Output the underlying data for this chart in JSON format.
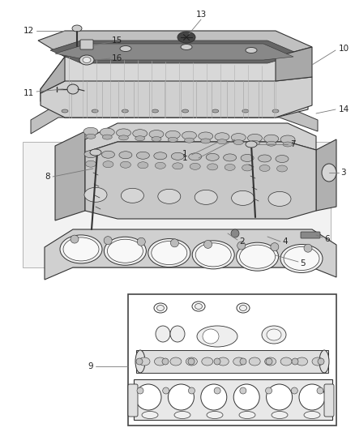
{
  "bg_color": "#ffffff",
  "fig_width": 4.38,
  "fig_height": 5.33,
  "dpi": 100,
  "draw_color": "#333333",
  "light_gray": "#e8e8e8",
  "mid_gray": "#c8c8c8",
  "dark_gray": "#888888",
  "line_gray": "#999999",
  "text_color": "#222222",
  "leader_color": "#777777",
  "label_fs": 7.5
}
